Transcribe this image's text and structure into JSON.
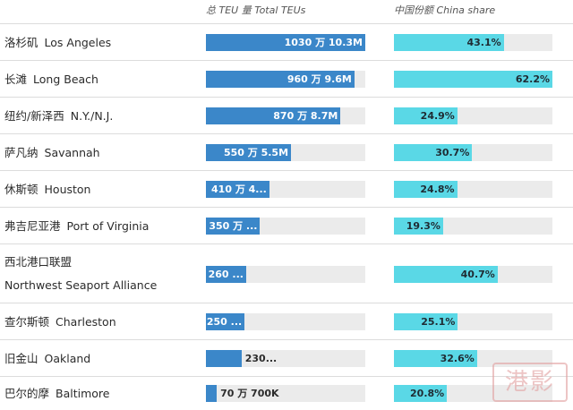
{
  "headers": {
    "teu": "总 TEU 量  Total TEUs",
    "china": "中国份额  China share"
  },
  "chart_data": {
    "type": "bar",
    "categories": [
      {
        "zh": "洛杉矶",
        "en": "Los Angeles"
      },
      {
        "zh": "长滩",
        "en": "Long Beach"
      },
      {
        "zh": "纽约/新泽西",
        "en": "N.Y./N.J."
      },
      {
        "zh": "萨凡纳",
        "en": "Savannah"
      },
      {
        "zh": "休斯顿",
        "en": "Houston"
      },
      {
        "zh": "弗吉尼亚港",
        "en": "Port of Virginia"
      },
      {
        "zh": "西北港口联盟",
        "en": "Northwest Seaport Alliance"
      },
      {
        "zh": "查尔斯顿",
        "en": "Charleston"
      },
      {
        "zh": "旧金山",
        "en": "Oakland"
      },
      {
        "zh": "巴尔的摩",
        "en": "Baltimore"
      }
    ],
    "series": [
      {
        "name": "总 TEU 量  Total TEUs",
        "values": [
          10.3,
          9.6,
          8.7,
          5.5,
          4.1,
          3.5,
          2.6,
          2.5,
          2.3,
          0.7
        ],
        "labels": [
          "1030 万  10.3M",
          "960 万  9.6M",
          "870 万  8.7M",
          "550 万  5.5M",
          "410 万  4...",
          "350 万  ...",
          "260 ...",
          "250 ...",
          "230...",
          "70 万  700K"
        ],
        "xlim": [
          0,
          10.3
        ]
      },
      {
        "name": "中国份额  China share",
        "values": [
          43.1,
          62.2,
          24.9,
          30.7,
          24.8,
          19.3,
          40.7,
          25.1,
          32.6,
          20.8
        ],
        "labels": [
          "43.1%",
          "62.2%",
          "24.9%",
          "30.7%",
          "24.8%",
          "19.3%",
          "40.7%",
          "25.1%",
          "32.6%",
          "20.8%"
        ],
        "xlim": [
          0,
          62.2
        ]
      }
    ],
    "colors": {
      "teu": "#3b87c9",
      "china": "#5ad8e6",
      "track": "#ebebeb"
    }
  },
  "watermark": "港影"
}
